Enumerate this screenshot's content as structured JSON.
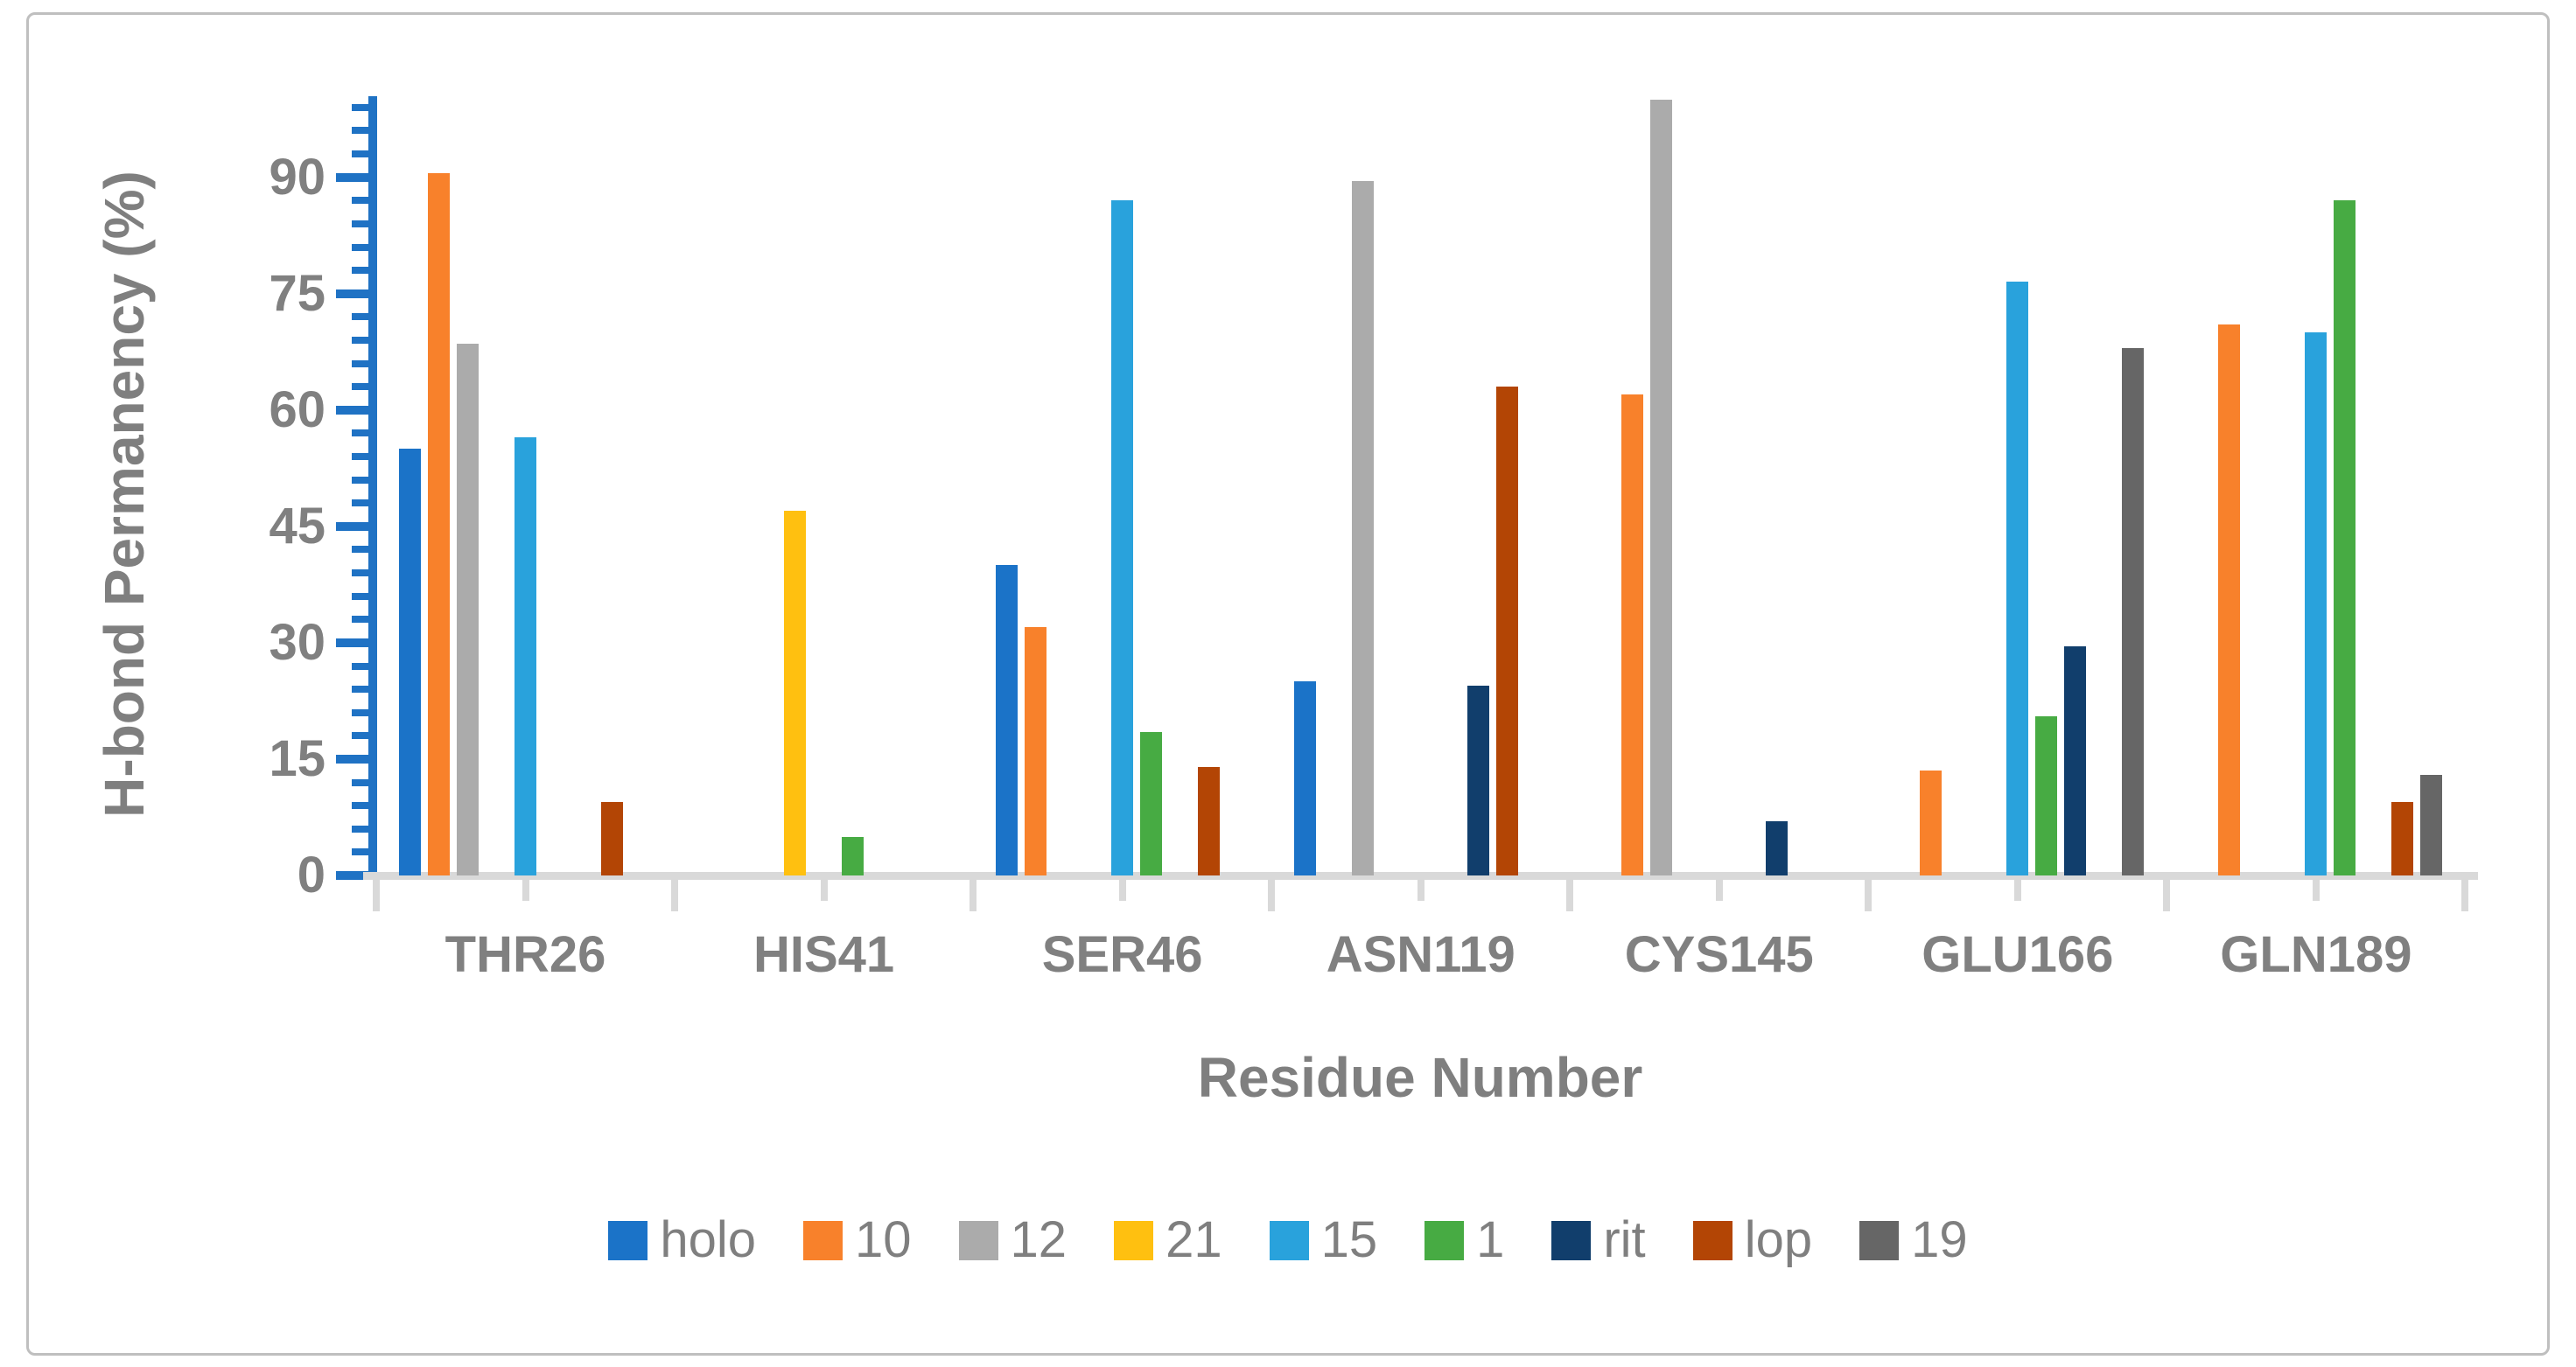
{
  "chart_data": {
    "type": "bar",
    "title": "",
    "xlabel": "Residue Number",
    "ylabel": "H-bond Permanency (%)",
    "categories": [
      "THR26",
      "HIS41",
      "SER46",
      "ASN119",
      "CYS145",
      "GLU166",
      "GLN189"
    ],
    "y_axis": {
      "min": 0,
      "max": 100,
      "major_unit": 15,
      "minor_unit": 3,
      "tick_labels": [
        "0",
        "15",
        "30",
        "45",
        "60",
        "75",
        "90"
      ]
    },
    "grid": "off",
    "legend_position": "bottom",
    "series": [
      {
        "name": "holo",
        "color": "#1B73C8",
        "values": [
          55,
          null,
          40,
          25,
          null,
          null,
          null
        ]
      },
      {
        "name": "10",
        "color": "#F8812B",
        "values": [
          90.5,
          null,
          32,
          null,
          62,
          13.5,
          71
        ]
      },
      {
        "name": "12",
        "color": "#ABABAB",
        "values": [
          68.5,
          null,
          null,
          89.5,
          100,
          null,
          null
        ]
      },
      {
        "name": "21",
        "color": "#FFC010",
        "values": [
          null,
          47,
          null,
          null,
          null,
          null,
          null
        ]
      },
      {
        "name": "15",
        "color": "#29A2DC",
        "values": [
          56.5,
          null,
          87,
          null,
          null,
          76.5,
          70
        ]
      },
      {
        "name": "1",
        "color": "#47AB43",
        "values": [
          null,
          5,
          18.5,
          null,
          null,
          20.5,
          87
        ]
      },
      {
        "name": "rit",
        "color": "#113E6C",
        "values": [
          null,
          null,
          null,
          24.5,
          7,
          29.5,
          null
        ]
      },
      {
        "name": "lop",
        "color": "#B34505",
        "values": [
          9.5,
          null,
          14,
          63,
          null,
          null,
          9.5
        ]
      },
      {
        "name": "19",
        "color": "#666666",
        "values": [
          null,
          null,
          null,
          null,
          null,
          68,
          13
        ]
      }
    ],
    "colors": {
      "value_axis": "#1F72C4",
      "category_axis": "#D9D9D9",
      "label_text": "#808080",
      "title_text": "#7F7F7F",
      "frame_border": "#BFBFBF"
    }
  }
}
